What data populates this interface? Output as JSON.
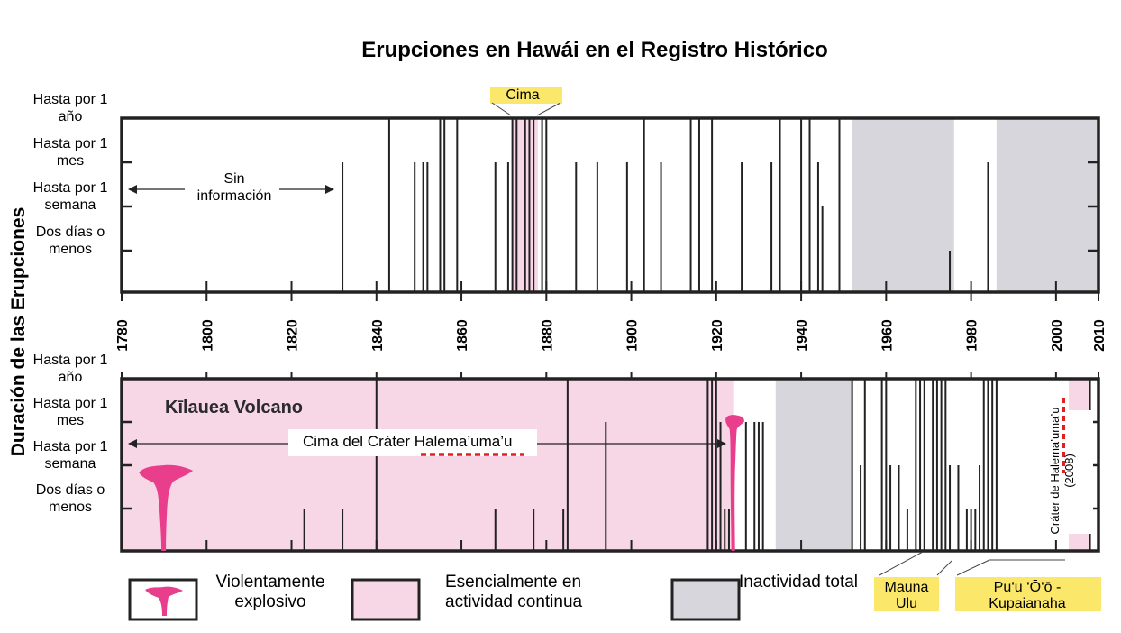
{
  "chart_data": {
    "type": "timeline",
    "title": "Erupciones en Hawái en el Registro Histórico",
    "ylabel": "Duración de las Erupciones",
    "x_range": [
      1780,
      2010
    ],
    "x_ticks": [
      1780,
      1800,
      1820,
      1840,
      1860,
      1880,
      1900,
      1920,
      1940,
      1960,
      1980,
      2000,
      2010
    ],
    "y_levels": [
      {
        "label_1": "Hasta por 1",
        "label_2": "año",
        "level": 4
      },
      {
        "label_1": "Hasta por 1",
        "label_2": "mes",
        "level": 3
      },
      {
        "label_1": "Hasta por 1",
        "label_2": "semana",
        "level": 2
      },
      {
        "label_1": "Dos días o",
        "label_2": "menos",
        "level": 1
      }
    ],
    "panels": [
      {
        "callout_top": "Cima",
        "no_info_line1": "Sin",
        "no_info_line2": "información",
        "continuous_spans": [
          [
            1872,
            1878
          ]
        ],
        "inactivity_spans": [
          [
            1952,
            1976
          ],
          [
            1986,
            2010
          ]
        ],
        "eruptions": [
          {
            "year": 1832,
            "level": 3
          },
          {
            "year": 1843,
            "level": 4
          },
          {
            "year": 1849,
            "level": 3
          },
          {
            "year": 1851,
            "level": 3
          },
          {
            "year": 1852,
            "level": 3
          },
          {
            "year": 1855,
            "level": 4
          },
          {
            "year": 1856,
            "level": 4
          },
          {
            "year": 1859,
            "level": 4
          },
          {
            "year": 1868,
            "level": 3
          },
          {
            "year": 1871,
            "level": 3
          },
          {
            "year": 1872,
            "level": 4
          },
          {
            "year": 1873,
            "level": 4
          },
          {
            "year": 1875,
            "level": 4
          },
          {
            "year": 1876,
            "level": 4
          },
          {
            "year": 1877,
            "level": 4
          },
          {
            "year": 1879,
            "level": 4
          },
          {
            "year": 1880,
            "level": 4
          },
          {
            "year": 1887,
            "level": 3
          },
          {
            "year": 1892,
            "level": 3
          },
          {
            "year": 1899,
            "level": 3
          },
          {
            "year": 1903,
            "level": 4
          },
          {
            "year": 1907,
            "level": 3
          },
          {
            "year": 1914,
            "level": 4
          },
          {
            "year": 1916,
            "level": 4
          },
          {
            "year": 1919,
            "level": 4
          },
          {
            "year": 1926,
            "level": 3
          },
          {
            "year": 1933,
            "level": 3
          },
          {
            "year": 1935,
            "level": 4
          },
          {
            "year": 1940,
            "level": 4
          },
          {
            "year": 1942,
            "level": 4
          },
          {
            "year": 1944,
            "level": 3
          },
          {
            "year": 1945,
            "level": 2
          },
          {
            "year": 1949,
            "level": 4
          },
          {
            "year": 1975,
            "level": 1
          },
          {
            "year": 1984,
            "level": 3
          }
        ]
      },
      {
        "volcano": "Kīlauea Volcano",
        "crater_label_prefix": "Cima del Cráter ",
        "crater_label_name": "Halema’uma’u",
        "side_label_line1": "Cráter de Halema’uma’u",
        "side_label_line2": "(2008)",
        "continuous_spans": [
          [
            1780,
            1924
          ],
          [
            2003,
            2008
          ]
        ],
        "inactivity_spans": [
          [
            1934,
            1952
          ]
        ],
        "explosive_years": [
          1790,
          1924
        ],
        "mauna_ulu_span": [
          1969,
          1974
        ],
        "puu_oo_span": [
          1983,
          1987
        ],
        "eruptions": [
          {
            "year": 1823,
            "level": 1
          },
          {
            "year": 1832,
            "level": 1
          },
          {
            "year": 1840,
            "level": 4
          },
          {
            "year": 1868,
            "level": 1
          },
          {
            "year": 1877,
            "level": 1
          },
          {
            "year": 1884,
            "level": 1
          },
          {
            "year": 1885,
            "level": 4
          },
          {
            "year": 1894,
            "level": 3
          },
          {
            "year": 1918,
            "level": 4
          },
          {
            "year": 1919,
            "level": 4
          },
          {
            "year": 1920,
            "level": 4
          },
          {
            "year": 1921,
            "level": 3
          },
          {
            "year": 1922,
            "level": 1
          },
          {
            "year": 1923,
            "level": 1
          },
          {
            "year": 1927,
            "level": 3
          },
          {
            "year": 1929,
            "level": 3
          },
          {
            "year": 1930,
            "level": 3
          },
          {
            "year": 1931,
            "level": 3
          },
          {
            "year": 1952,
            "level": 4
          },
          {
            "year": 1954,
            "level": 2
          },
          {
            "year": 1955,
            "level": 4
          },
          {
            "year": 1959,
            "level": 4
          },
          {
            "year": 1960,
            "level": 4
          },
          {
            "year": 1961,
            "level": 2
          },
          {
            "year": 1963,
            "level": 2
          },
          {
            "year": 1965,
            "level": 1
          },
          {
            "year": 1967,
            "level": 4
          },
          {
            "year": 1968,
            "level": 4
          },
          {
            "year": 1969,
            "level": 4
          },
          {
            "year": 1971,
            "level": 4
          },
          {
            "year": 1972,
            "level": 4
          },
          {
            "year": 1973,
            "level": 4
          },
          {
            "year": 1974,
            "level": 4
          },
          {
            "year": 1975,
            "level": 2
          },
          {
            "year": 1977,
            "level": 2
          },
          {
            "year": 1979,
            "level": 1
          },
          {
            "year": 1980,
            "level": 1
          },
          {
            "year": 1981,
            "level": 1
          },
          {
            "year": 1982,
            "level": 2
          },
          {
            "year": 1983,
            "level": 4
          },
          {
            "year": 1984,
            "level": 4
          },
          {
            "year": 1985,
            "level": 4
          },
          {
            "year": 1986,
            "level": 4
          },
          {
            "year": 2008,
            "level": 4
          }
        ]
      }
    ],
    "legend": [
      {
        "line1": "Violentamente",
        "line2": "explosivo",
        "swatch": "explosive"
      },
      {
        "line1": "Esencialmente en",
        "line2": "actividad continua",
        "swatch": "#f7d6e6"
      },
      {
        "line1": "Inactividad total",
        "line2": "",
        "swatch": "#d6d6dc"
      }
    ],
    "callouts": {
      "mauna_ulu_1": "Mauna",
      "mauna_ulu_2": "Ulu",
      "puu_oo_1": "Pu‘u ‘Ō‘ō -",
      "puu_oo_2": "Kupaianaha"
    },
    "colors": {
      "continuous": "#f7d6e6",
      "inactivity": "#d6d6dc",
      "explosive": "#e83e8c",
      "callout_bg": "#fbe86a",
      "dashed": "#e02020",
      "line": "#222222"
    }
  }
}
